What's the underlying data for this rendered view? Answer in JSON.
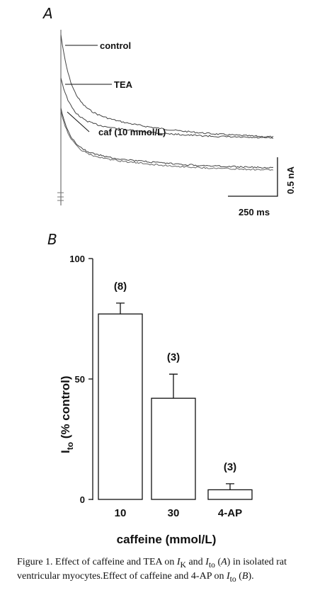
{
  "chart_data": [
    {
      "panel": "A",
      "type": "line",
      "series": [
        {
          "name": "control",
          "peak": 1.9,
          "late": 0.55
        },
        {
          "name": "TEA",
          "peak": 1.35,
          "late": 0.55
        },
        {
          "name": "caf (10 mmol/L)",
          "peak": 0.95,
          "late": 0.17
        }
      ],
      "scale_bar": {
        "x_label": "250 ms",
        "x_value_ms": 250,
        "y_label": "0.5 nA",
        "y_value_nA": 0.5
      }
    },
    {
      "panel": "B",
      "type": "bar",
      "categories": [
        "10",
        "30",
        "4-AP"
      ],
      "values": [
        77,
        42,
        4
      ],
      "errors": [
        4.5,
        10,
        2.5
      ],
      "n_labels": [
        "(8)",
        "(3)",
        "(3)"
      ],
      "ylim": [
        0,
        100
      ],
      "yticks": [
        "0",
        "50",
        "100"
      ],
      "ylabel": {
        "main": "I",
        "sub": "to",
        "rest": " (% control)"
      },
      "xlabel": "caffeine (mmol/L)"
    }
  ],
  "caption": {
    "p1": "Figure 1. Effect of caffeine and TEA on ",
    "ik": "I",
    "ik_sub": "K",
    "p2": " and ",
    "ito": "I",
    "ito_sub": "to",
    "p3": "  (",
    "a": "A",
    "p4": ") in isolated rat ventricular myocytes.Effect of caffeine and 4-AP on ",
    "ito2": "I",
    "ito2_sub": "to",
    "p5": " (",
    "b": "B",
    "p6": ")."
  }
}
